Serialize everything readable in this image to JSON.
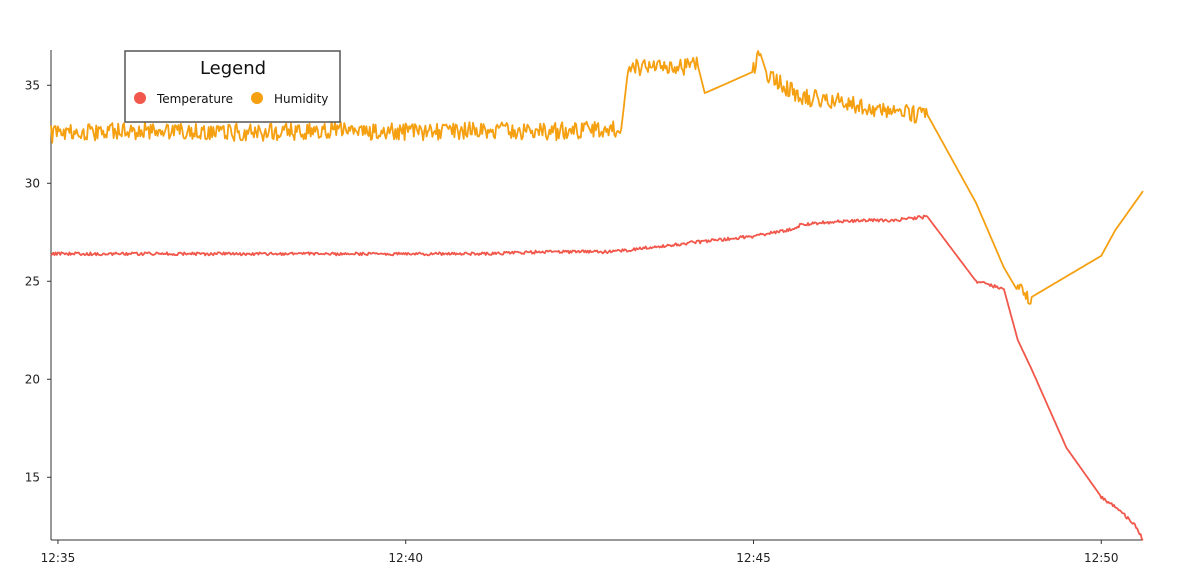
{
  "chart_data": {
    "type": "line",
    "title": "",
    "xlabel": "",
    "ylabel": "",
    "x_ticks": [
      "12:35",
      "12:40",
      "12:45",
      "12:50"
    ],
    "y_ticks": [
      15,
      20,
      25,
      30,
      35
    ],
    "ylim": [
      11.8,
      36.8
    ],
    "xlim": [
      "12:34.9",
      "12:50.6"
    ],
    "grid": false,
    "legend": {
      "title": "Legend",
      "placement": "top-left",
      "entries": [
        {
          "label": "Temperature",
          "color": "#f1574a"
        },
        {
          "label": "Humidity",
          "color": "#f5a011"
        }
      ]
    },
    "series": [
      {
        "name": "Temperature",
        "color": "#f1574a",
        "x": [
          "12:34.9",
          "12:36",
          "12:37",
          "12:38",
          "12:39",
          "12:40",
          "12:41",
          "12:42",
          "12:43",
          "12:43.2",
          "12:44.2",
          "12:45",
          "12:45.3",
          "12:45.5",
          "12:45.7",
          "12:46",
          "12:46.5",
          "12:47",
          "12:47.5",
          "12:48.2",
          "12:48.6",
          "12:48.8",
          "12:49",
          "12:49.5",
          "12:50",
          "12:50.3",
          "12:50.5",
          "12:50.6"
        ],
        "y": [
          26.4,
          26.4,
          26.4,
          26.4,
          26.4,
          26.4,
          26.4,
          26.5,
          26.5,
          26.6,
          27.0,
          27.3,
          27.5,
          27.6,
          27.9,
          28.0,
          28.1,
          28.1,
          28.3,
          25.0,
          24.6,
          22.0,
          20.5,
          16.5,
          14.0,
          13.2,
          12.5,
          11.8
        ]
      },
      {
        "name": "Humidity",
        "color": "#f5a011",
        "x": [
          "12:34.9",
          "12:35.5",
          "12:36",
          "12:37",
          "12:38",
          "12:39",
          "12:40",
          "12:41",
          "12:42",
          "12:42.8",
          "12:43.1",
          "12:43.2",
          "12:44.2",
          "12:44.3",
          "12:45",
          "12:45.1",
          "12:45.2",
          "12:45.5",
          "12:45.7",
          "12:46",
          "12:47",
          "12:47.5",
          "12:48.2",
          "12:48.6",
          "12:48.8",
          "12:49",
          "12:50",
          "12:50.2",
          "12:50.4",
          "12:50.6"
        ],
        "y": [
          32.5,
          32.6,
          32.7,
          32.6,
          32.6,
          32.7,
          32.6,
          32.7,
          32.6,
          32.8,
          32.8,
          35.9,
          36.0,
          34.6,
          35.7,
          36.6,
          35.5,
          34.8,
          34.4,
          34.3,
          33.6,
          33.5,
          29.0,
          25.7,
          24.5,
          24.2,
          26.3,
          27.6,
          28.6,
          29.6
        ]
      }
    ]
  }
}
